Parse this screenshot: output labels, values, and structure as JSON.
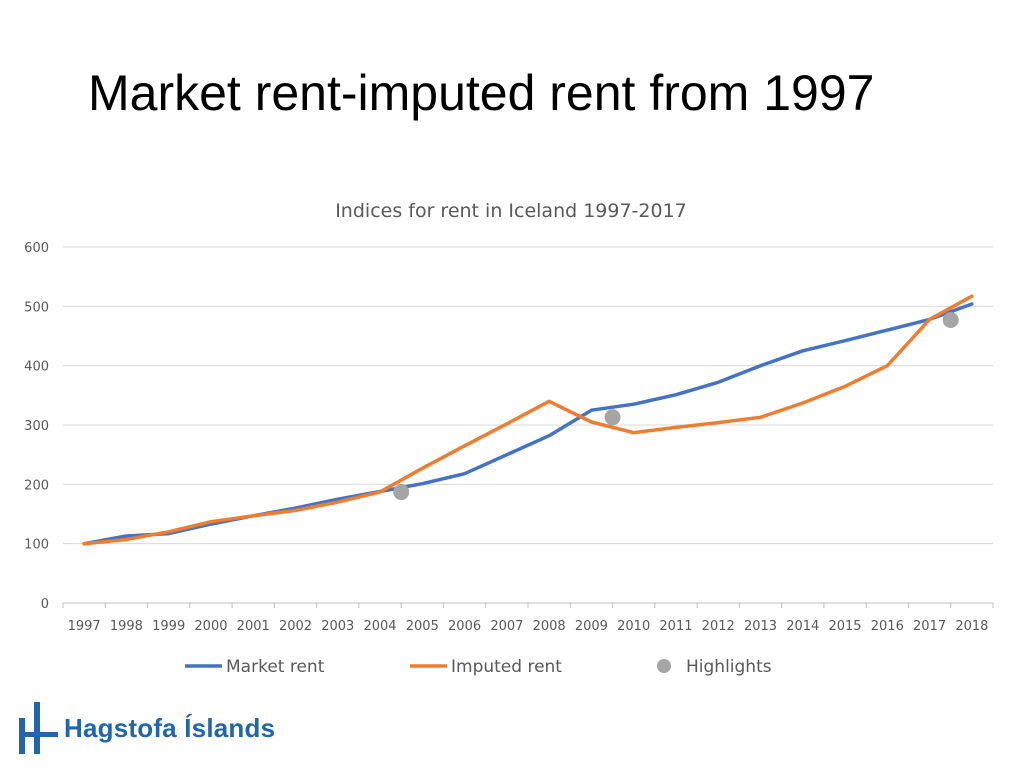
{
  "slide": {
    "title": "Market rent-imputed rent from 1997"
  },
  "logo": {
    "text": "Hagstofa Íslands"
  },
  "colors": {
    "market": "#4472c4",
    "imputed": "#ed7d31",
    "highlight": "#a5a5a5",
    "grid": "#d9d9d9",
    "logo": "#2166ac"
  },
  "chart_data": {
    "type": "line",
    "title": "Indices for rent in Iceland 1997-2017",
    "xlabel": "",
    "ylabel": "",
    "categories": [
      "1997",
      "1998",
      "1999",
      "2000",
      "2001",
      "2002",
      "2003",
      "2004",
      "2005",
      "2006",
      "2007",
      "2008",
      "2009",
      "2010",
      "2011",
      "2012",
      "2013",
      "2014",
      "2015",
      "2016",
      "2017",
      "2018"
    ],
    "ylim": [
      0,
      600
    ],
    "yticks": [
      "0",
      "100",
      "200",
      "300",
      "400",
      "500",
      "600"
    ],
    "grid": true,
    "legend_position": "bottom",
    "series": [
      {
        "name": "Market rent",
        "values": [
          100,
          113,
          117,
          133,
          147,
          160,
          175,
          188,
          201,
          218,
          250,
          282,
          325,
          335,
          351,
          372,
          400,
          425,
          442,
          460,
          478,
          504
        ]
      },
      {
        "name": "Imputed rent",
        "values": [
          100,
          107,
          120,
          137,
          147,
          156,
          170,
          187,
          227,
          265,
          302,
          340,
          305,
          287,
          296,
          304,
          313,
          337,
          365,
          400,
          478,
          517
        ]
      }
    ],
    "highlights": {
      "name": "Highlights",
      "points": [
        {
          "x": 2004.5,
          "y": 187
        },
        {
          "x": 2009.5,
          "y": 313
        },
        {
          "x": 2017.5,
          "y": 477
        }
      ]
    }
  }
}
